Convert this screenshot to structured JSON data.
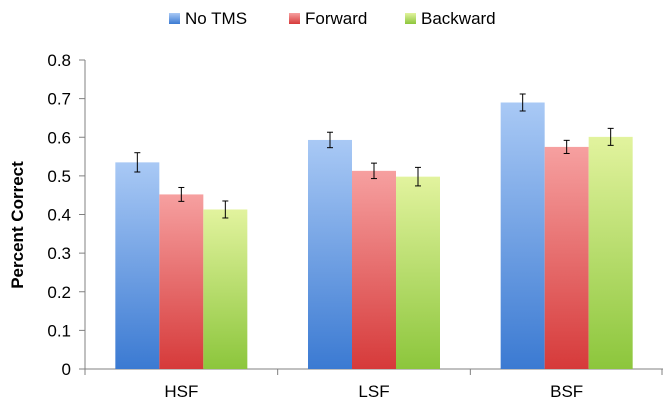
{
  "chart_data": {
    "type": "bar",
    "categories": [
      "HSF",
      "LSF",
      "BSF"
    ],
    "series": [
      {
        "name": "No TMS",
        "values": [
          0.535,
          0.593,
          0.69
        ],
        "errors": [
          0.025,
          0.02,
          0.022
        ],
        "color_top": "#a9c9f5",
        "color_bottom": "#3b7ad2"
      },
      {
        "name": "Forward",
        "values": [
          0.452,
          0.513,
          0.575
        ],
        "errors": [
          0.018,
          0.02,
          0.017
        ],
        "color_top": "#f6a0a0",
        "color_bottom": "#d63a3a"
      },
      {
        "name": "Backward",
        "values": [
          0.413,
          0.498,
          0.601
        ],
        "errors": [
          0.022,
          0.024,
          0.022
        ],
        "color_top": "#e2f39e",
        "color_bottom": "#8cc63c"
      }
    ],
    "ylabel": "Percent Correct",
    "xlabel": "",
    "ylim": [
      0,
      0.8
    ],
    "yticks": [
      "0",
      "0.1",
      "0.2",
      "0.3",
      "0.4",
      "0.5",
      "0.6",
      "0.7",
      "0.8"
    ],
    "legend_position": "top-center",
    "grid": false
  }
}
